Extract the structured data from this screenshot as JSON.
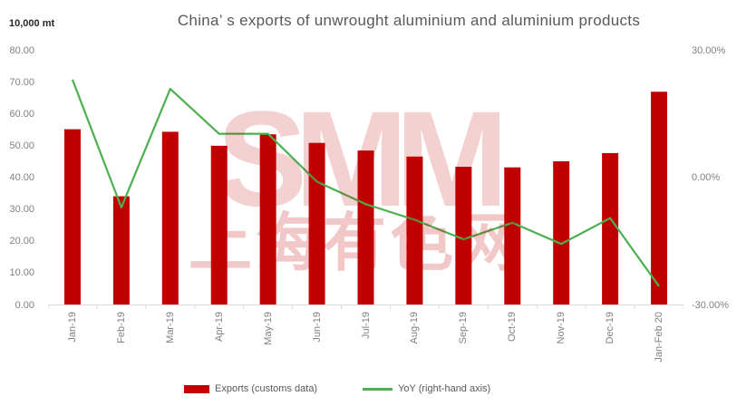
{
  "title": "China’ s exports of unwrought aluminium and aluminium products",
  "axis_unit_label": "10,000 mt",
  "watermark": {
    "line1": "SMM",
    "line2": "上海有色网"
  },
  "legend": [
    {
      "label": "Exports (customs data)",
      "color": "#C00000",
      "type": "bar"
    },
    {
      "label": "YoY (right-hand axis)",
      "color": "#4CAF50",
      "type": "line"
    }
  ],
  "chart_data": {
    "type": "combo",
    "title": "China’ s exports of unwrought aluminium and aluminium products",
    "categories": [
      "Jan-19",
      "Feb-19",
      "Mar-19",
      "Apr-19",
      "May-19",
      "Jun-19",
      "Jul-19",
      "Aug-19",
      "Sep-19",
      "Oct-19",
      "Nov-19",
      "Dec-19",
      "Jan-Feb 20"
    ],
    "series": [
      {
        "name": "Exports (customs data)",
        "type": "bar",
        "axis": "left",
        "color": "#C00000",
        "values": [
          55.3,
          34.2,
          54.5,
          50.1,
          53.7,
          51.0,
          48.6,
          46.7,
          43.5,
          43.3,
          45.2,
          47.8,
          67.1
        ]
      },
      {
        "name": "YoY (right-hand axis)",
        "type": "line",
        "axis": "right",
        "color": "#4CAF50",
        "values": [
          23.2,
          -7.0,
          21.0,
          10.4,
          10.4,
          -0.9,
          -6.2,
          -9.9,
          -14.5,
          -10.6,
          -15.6,
          -9.5,
          -25.6
        ]
      }
    ],
    "left_axis": {
      "label": "10,000 mt",
      "ticks": [
        "80.00",
        "70.00",
        "60.00",
        "50.00",
        "40.00",
        "30.00",
        "20.00",
        "10.00",
        "0.00"
      ],
      "range": [
        0,
        80
      ]
    },
    "right_axis": {
      "ticks": [
        "30.00%",
        "0.00%",
        "-30.00%"
      ],
      "range": [
        -30,
        30
      ]
    },
    "grid": false,
    "legend_position": "bottom",
    "axis_line_color": "#D9D9D9"
  }
}
